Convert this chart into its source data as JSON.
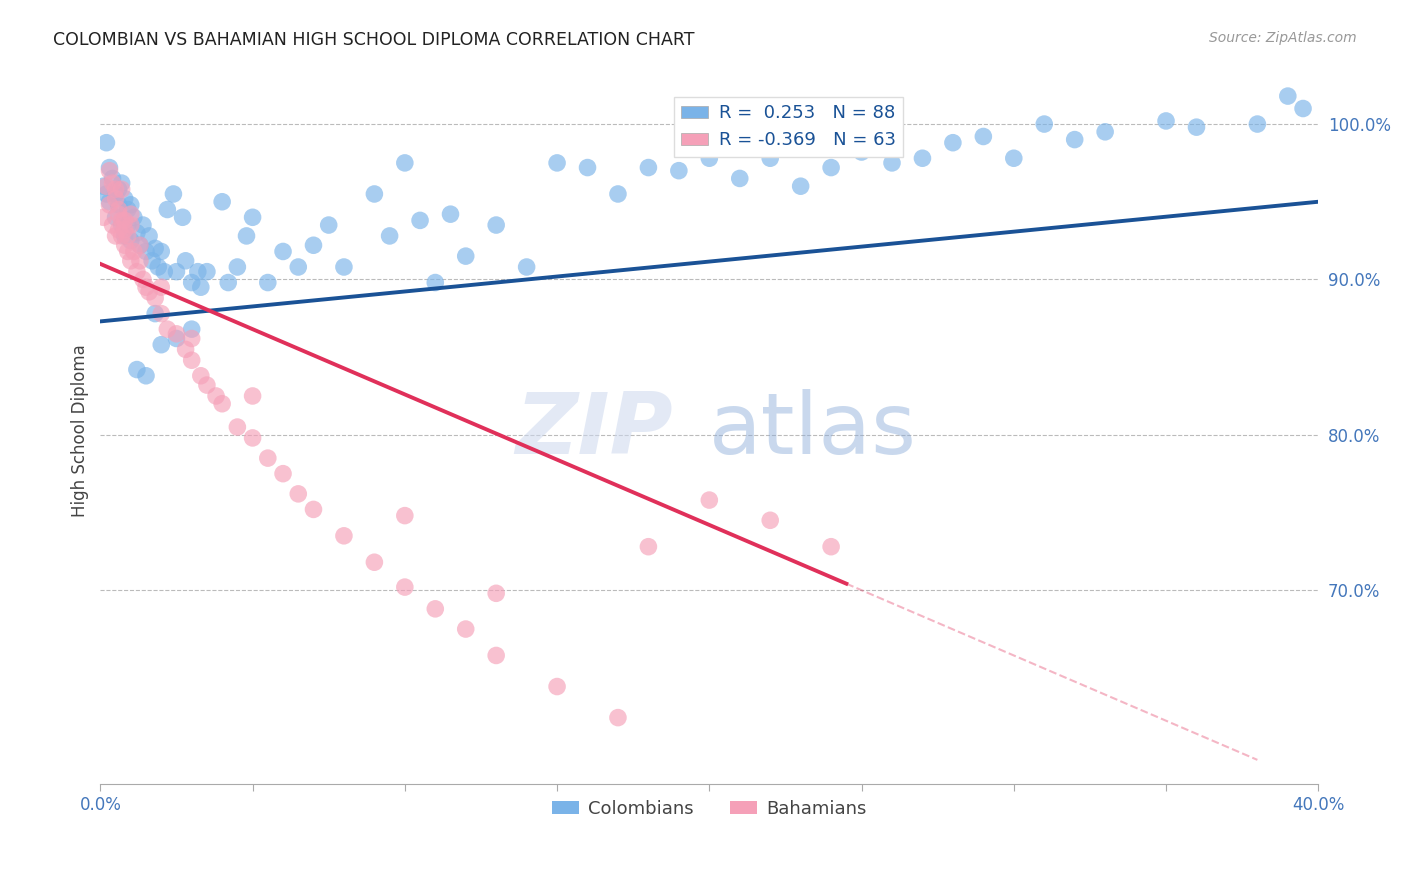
{
  "title": "COLOMBIAN VS BAHAMIAN HIGH SCHOOL DIPLOMA CORRELATION CHART",
  "source": "Source: ZipAtlas.com",
  "ylabel": "High School Diploma",
  "x_min": 0.0,
  "x_max": 0.4,
  "y_min": 0.575,
  "y_max": 1.03,
  "x_ticks": [
    0.0,
    0.05,
    0.1,
    0.15,
    0.2,
    0.25,
    0.3,
    0.35,
    0.4
  ],
  "x_tick_labels": [
    "0.0%",
    "",
    "",
    "",
    "",
    "",
    "",
    "",
    "40.0%"
  ],
  "y_ticks": [
    0.7,
    0.8,
    0.9,
    1.0
  ],
  "y_tick_labels": [
    "70.0%",
    "80.0%",
    "90.0%",
    "100.0%"
  ],
  "watermark_zip": "ZIP",
  "watermark_atlas": "atlas",
  "legend_text_blue": "R =  0.253   N = 88",
  "legend_text_pink": "R = -0.369   N = 63",
  "legend_label_blue": "Colombians",
  "legend_label_pink": "Bahamians",
  "blue_scatter_color": "#7ab3e8",
  "pink_scatter_color": "#f5a0b8",
  "blue_line_color": "#1a5296",
  "pink_line_color": "#e0305a",
  "title_color": "#222222",
  "axis_label_color": "#444444",
  "tick_color": "#4477bb",
  "grid_color": "#bbbbbb",
  "background_color": "#ffffff",
  "colombians_x": [
    0.001,
    0.002,
    0.002,
    0.003,
    0.003,
    0.004,
    0.005,
    0.005,
    0.006,
    0.006,
    0.007,
    0.007,
    0.008,
    0.008,
    0.009,
    0.009,
    0.01,
    0.01,
    0.011,
    0.012,
    0.013,
    0.014,
    0.015,
    0.016,
    0.017,
    0.018,
    0.019,
    0.02,
    0.021,
    0.022,
    0.024,
    0.025,
    0.027,
    0.028,
    0.03,
    0.032,
    0.033,
    0.035,
    0.04,
    0.042,
    0.045,
    0.048,
    0.05,
    0.055,
    0.06,
    0.065,
    0.07,
    0.075,
    0.08,
    0.09,
    0.095,
    0.1,
    0.105,
    0.11,
    0.115,
    0.12,
    0.13,
    0.14,
    0.15,
    0.16,
    0.17,
    0.18,
    0.19,
    0.2,
    0.21,
    0.22,
    0.23,
    0.24,
    0.25,
    0.26,
    0.27,
    0.28,
    0.29,
    0.3,
    0.31,
    0.32,
    0.33,
    0.35,
    0.36,
    0.38,
    0.39,
    0.395,
    0.018,
    0.025,
    0.012,
    0.02,
    0.015,
    0.03
  ],
  "colombians_y": [
    0.96,
    0.988,
    0.955,
    0.972,
    0.95,
    0.965,
    0.955,
    0.94,
    0.958,
    0.948,
    0.962,
    0.935,
    0.952,
    0.928,
    0.945,
    0.935,
    0.948,
    0.925,
    0.94,
    0.93,
    0.922,
    0.935,
    0.918,
    0.928,
    0.912,
    0.92,
    0.908,
    0.918,
    0.905,
    0.945,
    0.955,
    0.905,
    0.94,
    0.912,
    0.898,
    0.905,
    0.895,
    0.905,
    0.95,
    0.898,
    0.908,
    0.928,
    0.94,
    0.898,
    0.918,
    0.908,
    0.922,
    0.935,
    0.908,
    0.955,
    0.928,
    0.975,
    0.938,
    0.898,
    0.942,
    0.915,
    0.935,
    0.908,
    0.975,
    0.972,
    0.955,
    0.972,
    0.97,
    0.978,
    0.965,
    0.978,
    0.96,
    0.972,
    0.982,
    0.975,
    0.978,
    0.988,
    0.992,
    0.978,
    1.0,
    0.99,
    0.995,
    1.002,
    0.998,
    1.0,
    1.018,
    1.01,
    0.878,
    0.862,
    0.842,
    0.858,
    0.838,
    0.868
  ],
  "bahamians_x": [
    0.001,
    0.002,
    0.003,
    0.004,
    0.005,
    0.005,
    0.006,
    0.006,
    0.007,
    0.007,
    0.008,
    0.008,
    0.009,
    0.009,
    0.01,
    0.01,
    0.011,
    0.012,
    0.013,
    0.014,
    0.015,
    0.016,
    0.018,
    0.02,
    0.022,
    0.025,
    0.028,
    0.03,
    0.033,
    0.035,
    0.038,
    0.04,
    0.045,
    0.05,
    0.055,
    0.06,
    0.065,
    0.07,
    0.08,
    0.09,
    0.1,
    0.11,
    0.12,
    0.13,
    0.15,
    0.17,
    0.18,
    0.2,
    0.22,
    0.24,
    0.003,
    0.004,
    0.005,
    0.006,
    0.007,
    0.008,
    0.01,
    0.013,
    0.02,
    0.03,
    0.05,
    0.1,
    0.13
  ],
  "bahamians_y": [
    0.94,
    0.96,
    0.948,
    0.935,
    0.928,
    0.958,
    0.932,
    0.945,
    0.928,
    0.938,
    0.922,
    0.932,
    0.918,
    0.928,
    0.912,
    0.935,
    0.918,
    0.905,
    0.912,
    0.9,
    0.895,
    0.892,
    0.888,
    0.878,
    0.868,
    0.865,
    0.855,
    0.848,
    0.838,
    0.832,
    0.825,
    0.82,
    0.805,
    0.798,
    0.785,
    0.775,
    0.762,
    0.752,
    0.735,
    0.718,
    0.702,
    0.688,
    0.675,
    0.658,
    0.638,
    0.618,
    0.728,
    0.758,
    0.745,
    0.728,
    0.97,
    0.962,
    0.952,
    0.942,
    0.958,
    0.938,
    0.942,
    0.922,
    0.895,
    0.862,
    0.825,
    0.748,
    0.698
  ],
  "pink_line_x_solid_start": 0.0,
  "pink_line_x_solid_end": 0.245,
  "pink_line_x_dash_end": 0.38,
  "blue_line_y_at_0": 0.873,
  "blue_line_y_at_40": 0.95,
  "pink_line_y_at_0": 0.91,
  "pink_line_y_at_25": 0.7
}
